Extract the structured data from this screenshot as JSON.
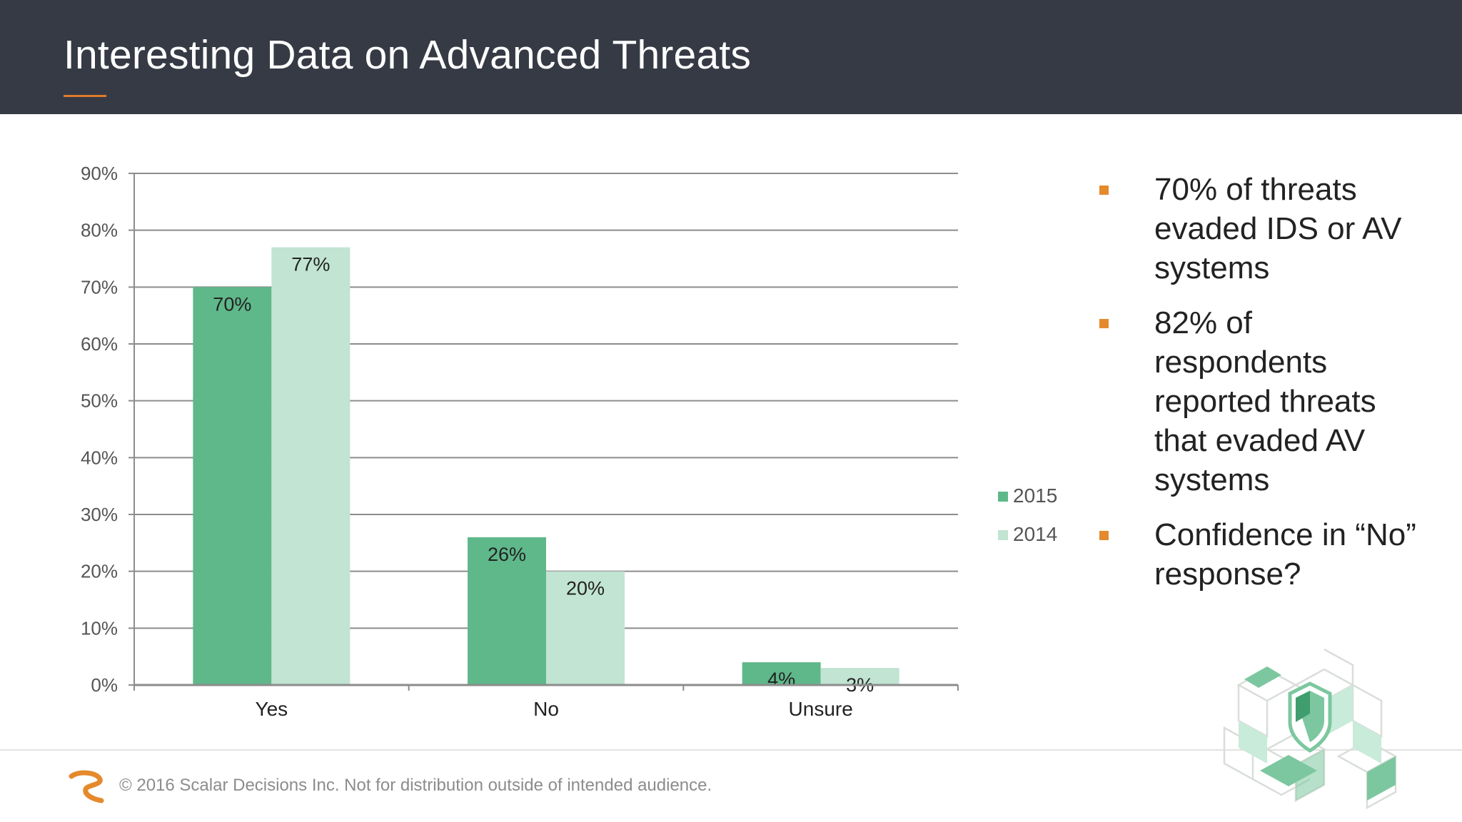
{
  "slide": {
    "title": "Interesting Data on Advanced Threats",
    "bullets": [
      "70% of threats evaded IDS or AV systems",
      "82% of respondents reported threats that evaded AV systems",
      "Confidence in “No” response?"
    ],
    "footer": "© 2016 Scalar Decisions Inc. Not for distribution outside of intended audience."
  },
  "colors": {
    "header_bg": "#363a45",
    "accent": "#e07a2a",
    "series_2015": "#5fb88a",
    "series_2014": "#c2e4d2",
    "gridline": "#8c8c8c"
  },
  "chart_data": {
    "type": "bar",
    "title": "",
    "xlabel": "",
    "ylabel": "",
    "categories": [
      "Yes",
      "No",
      "Unsure"
    ],
    "series": [
      {
        "name": "2015",
        "values": [
          70,
          26,
          4
        ],
        "labels": [
          "70%",
          "26%",
          "4%"
        ]
      },
      {
        "name": "2014",
        "values": [
          77,
          20,
          3
        ],
        "labels": [
          "77%",
          "20%",
          "3%"
        ]
      }
    ],
    "ylim": [
      0,
      90
    ],
    "yticks": [
      0,
      10,
      20,
      30,
      40,
      50,
      60,
      70,
      80,
      90
    ],
    "ytick_labels": [
      "0%",
      "10%",
      "20%",
      "30%",
      "40%",
      "50%",
      "60%",
      "70%",
      "80%",
      "90%"
    ],
    "grid": true,
    "legend": "right"
  }
}
